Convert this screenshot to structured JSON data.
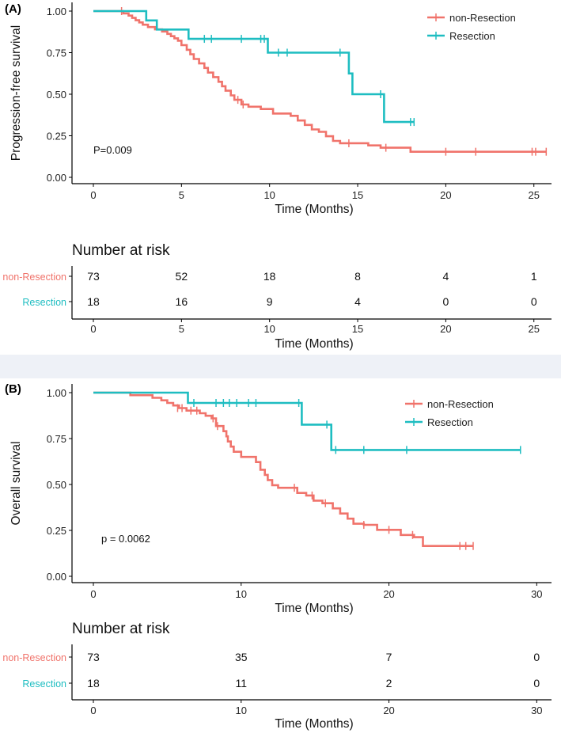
{
  "colors": {
    "non_resection": "#f0736b",
    "resection": "#1ebdc1",
    "axis": "#000000"
  },
  "chart_data": [
    {
      "type": "line",
      "id": "A",
      "panel_label": "(A)",
      "ylabel": "Progression-free survival",
      "xlabel": "Time (Months)",
      "xlim": [
        0,
        26
      ],
      "ylim": [
        0,
        1
      ],
      "xticks": [
        0,
        5,
        10,
        15,
        20,
        25
      ],
      "yticks": [
        0.0,
        0.25,
        0.5,
        0.75,
        1.0
      ],
      "ytick_labels": [
        "0.00",
        "0.25",
        "0.50",
        "0.75",
        "1.00"
      ],
      "pvalue": "P=0.009",
      "series": [
        {
          "name": "non-Resection",
          "steps": [
            [
              0,
              1
            ],
            [
              1.7,
              1
            ],
            [
              1.7,
              0.986
            ],
            [
              2.0,
              0.986
            ],
            [
              2.0,
              0.973
            ],
            [
              2.2,
              0.973
            ],
            [
              2.2,
              0.959
            ],
            [
              2.4,
              0.959
            ],
            [
              2.4,
              0.945
            ],
            [
              2.6,
              0.945
            ],
            [
              2.6,
              0.932
            ],
            [
              2.8,
              0.932
            ],
            [
              2.8,
              0.918
            ],
            [
              3.1,
              0.918
            ],
            [
              3.1,
              0.904
            ],
            [
              3.5,
              0.904
            ],
            [
              3.5,
              0.89
            ],
            [
              3.9,
              0.89
            ],
            [
              3.9,
              0.877
            ],
            [
              4.2,
              0.877
            ],
            [
              4.2,
              0.863
            ],
            [
              4.4,
              0.863
            ],
            [
              4.4,
              0.849
            ],
            [
              4.6,
              0.849
            ],
            [
              4.6,
              0.836
            ],
            [
              4.8,
              0.836
            ],
            [
              4.8,
              0.822
            ],
            [
              5.0,
              0.822
            ],
            [
              5.0,
              0.795
            ],
            [
              5.3,
              0.795
            ],
            [
              5.3,
              0.767
            ],
            [
              5.5,
              0.767
            ],
            [
              5.5,
              0.74
            ],
            [
              5.7,
              0.74
            ],
            [
              5.7,
              0.712
            ],
            [
              6.0,
              0.712
            ],
            [
              6.0,
              0.685
            ],
            [
              6.3,
              0.685
            ],
            [
              6.3,
              0.658
            ],
            [
              6.5,
              0.658
            ],
            [
              6.5,
              0.63
            ],
            [
              6.8,
              0.63
            ],
            [
              6.8,
              0.603
            ],
            [
              7.1,
              0.603
            ],
            [
              7.1,
              0.575
            ],
            [
              7.3,
              0.575
            ],
            [
              7.3,
              0.548
            ],
            [
              7.5,
              0.548
            ],
            [
              7.5,
              0.521
            ],
            [
              7.8,
              0.521
            ],
            [
              7.8,
              0.493
            ],
            [
              8.0,
              0.493
            ],
            [
              8.0,
              0.466
            ],
            [
              8.4,
              0.466
            ],
            [
              8.4,
              0.438
            ],
            [
              8.8,
              0.438
            ],
            [
              8.8,
              0.425
            ],
            [
              9.5,
              0.425
            ],
            [
              9.5,
              0.411
            ],
            [
              10.2,
              0.411
            ],
            [
              10.2,
              0.384
            ],
            [
              11.2,
              0.384
            ],
            [
              11.2,
              0.37
            ],
            [
              11.6,
              0.37
            ],
            [
              11.6,
              0.342
            ],
            [
              12.0,
              0.342
            ],
            [
              12.0,
              0.315
            ],
            [
              12.4,
              0.315
            ],
            [
              12.4,
              0.288
            ],
            [
              12.8,
              0.288
            ],
            [
              12.8,
              0.274
            ],
            [
              13.2,
              0.274
            ],
            [
              13.2,
              0.247
            ],
            [
              13.6,
              0.247
            ],
            [
              13.6,
              0.219
            ],
            [
              14.0,
              0.219
            ],
            [
              14.0,
              0.205
            ],
            [
              15.6,
              0.205
            ],
            [
              15.6,
              0.192
            ],
            [
              16.3,
              0.192
            ],
            [
              16.3,
              0.178
            ],
            [
              18.0,
              0.178
            ],
            [
              18.0,
              0.154
            ],
            [
              25.7,
              0.154
            ]
          ],
          "censors": [
            [
              1.6,
              1
            ],
            [
              8.2,
              0.466
            ],
            [
              8.5,
              0.438
            ],
            [
              14.5,
              0.205
            ],
            [
              16.6,
              0.178
            ],
            [
              20.0,
              0.154
            ],
            [
              21.7,
              0.154
            ],
            [
              24.9,
              0.154
            ],
            [
              25.1,
              0.154
            ],
            [
              25.7,
              0.154
            ]
          ]
        },
        {
          "name": "Resection",
          "steps": [
            [
              0,
              1
            ],
            [
              3.0,
              1
            ],
            [
              3.0,
              0.944
            ],
            [
              3.6,
              0.944
            ],
            [
              3.6,
              0.889
            ],
            [
              5.4,
              0.889
            ],
            [
              5.4,
              0.833
            ],
            [
              9.9,
              0.833
            ],
            [
              9.9,
              0.75
            ],
            [
              14.5,
              0.75
            ],
            [
              14.5,
              0.625
            ],
            [
              14.7,
              0.625
            ],
            [
              14.7,
              0.5
            ],
            [
              16.5,
              0.5
            ],
            [
              16.5,
              0.333
            ],
            [
              18.2,
              0.333
            ]
          ],
          "censors": [
            [
              6.3,
              0.833
            ],
            [
              6.7,
              0.833
            ],
            [
              8.4,
              0.833
            ],
            [
              9.5,
              0.833
            ],
            [
              9.7,
              0.833
            ],
            [
              10.5,
              0.75
            ],
            [
              11.0,
              0.75
            ],
            [
              14.0,
              0.75
            ],
            [
              16.3,
              0.5
            ],
            [
              18.0,
              0.333
            ],
            [
              18.2,
              0.333
            ]
          ]
        }
      ],
      "risk_table": {
        "title": "Number at risk",
        "xlabel": "Time (Months)",
        "xlim": [
          0,
          26
        ],
        "xticks": [
          0,
          5,
          10,
          15,
          20,
          25
        ],
        "rows": [
          {
            "name": "non-Resection",
            "values": [
              "73",
              "52",
              "18",
              "8",
              "4",
              "1"
            ]
          },
          {
            "name": "Resection",
            "values": [
              "18",
              "16",
              "9",
              "4",
              "0",
              "0"
            ]
          }
        ]
      }
    },
    {
      "type": "line",
      "id": "B",
      "panel_label": "(B)",
      "ylabel": "Overall survival",
      "xlabel": "Time (Months)",
      "xlim": [
        0,
        31
      ],
      "ylim": [
        0,
        1
      ],
      "xticks": [
        0,
        10,
        20,
        30
      ],
      "yticks": [
        0.0,
        0.25,
        0.5,
        0.75,
        1.0
      ],
      "ytick_labels": [
        "0.00",
        "0.25",
        "0.50",
        "0.75",
        "1.00"
      ],
      "pvalue": "p = 0.0062",
      "series": [
        {
          "name": "non-Resection",
          "steps": [
            [
              0,
              1
            ],
            [
              2.5,
              1
            ],
            [
              2.5,
              0.986
            ],
            [
              4.0,
              0.986
            ],
            [
              4.0,
              0.972
            ],
            [
              4.6,
              0.972
            ],
            [
              4.6,
              0.958
            ],
            [
              5.0,
              0.958
            ],
            [
              5.0,
              0.944
            ],
            [
              5.4,
              0.944
            ],
            [
              5.4,
              0.93
            ],
            [
              5.8,
              0.93
            ],
            [
              5.8,
              0.916
            ],
            [
              6.3,
              0.916
            ],
            [
              6.3,
              0.902
            ],
            [
              7.2,
              0.902
            ],
            [
              7.2,
              0.888
            ],
            [
              7.6,
              0.888
            ],
            [
              7.6,
              0.874
            ],
            [
              8.0,
              0.874
            ],
            [
              8.0,
              0.86
            ],
            [
              8.3,
              0.86
            ],
            [
              8.3,
              0.818
            ],
            [
              8.8,
              0.818
            ],
            [
              8.8,
              0.79
            ],
            [
              9.0,
              0.79
            ],
            [
              9.0,
              0.762
            ],
            [
              9.1,
              0.762
            ],
            [
              9.1,
              0.734
            ],
            [
              9.3,
              0.734
            ],
            [
              9.3,
              0.706
            ],
            [
              9.5,
              0.706
            ],
            [
              9.5,
              0.678
            ],
            [
              10.0,
              0.678
            ],
            [
              10.0,
              0.65
            ],
            [
              11.0,
              0.65
            ],
            [
              11.0,
              0.622
            ],
            [
              11.3,
              0.622
            ],
            [
              11.3,
              0.58
            ],
            [
              11.6,
              0.58
            ],
            [
              11.6,
              0.552
            ],
            [
              11.8,
              0.552
            ],
            [
              11.8,
              0.524
            ],
            [
              12.1,
              0.524
            ],
            [
              12.1,
              0.496
            ],
            [
              12.5,
              0.496
            ],
            [
              12.5,
              0.482
            ],
            [
              13.8,
              0.482
            ],
            [
              13.8,
              0.454
            ],
            [
              14.4,
              0.454
            ],
            [
              14.4,
              0.44
            ],
            [
              14.9,
              0.44
            ],
            [
              14.9,
              0.412
            ],
            [
              15.5,
              0.412
            ],
            [
              15.5,
              0.398
            ],
            [
              16.2,
              0.398
            ],
            [
              16.2,
              0.37
            ],
            [
              16.7,
              0.37
            ],
            [
              16.7,
              0.342
            ],
            [
              17.2,
              0.342
            ],
            [
              17.2,
              0.314
            ],
            [
              17.6,
              0.314
            ],
            [
              17.6,
              0.286
            ],
            [
              18.3,
              0.286
            ],
            [
              18.3,
              0.28
            ],
            [
              19.2,
              0.28
            ],
            [
              19.2,
              0.253
            ],
            [
              20.8,
              0.253
            ],
            [
              20.8,
              0.225
            ],
            [
              21.7,
              0.225
            ],
            [
              21.7,
              0.213
            ],
            [
              22.3,
              0.213
            ],
            [
              22.3,
              0.165
            ],
            [
              25.7,
              0.165
            ]
          ],
          "censors": [
            [
              5.7,
              0.916
            ],
            [
              6.0,
              0.916
            ],
            [
              6.6,
              0.902
            ],
            [
              7.0,
              0.902
            ],
            [
              8.1,
              0.86
            ],
            [
              8.4,
              0.818
            ],
            [
              13.6,
              0.482
            ],
            [
              14.8,
              0.44
            ],
            [
              15.7,
              0.398
            ],
            [
              18.3,
              0.28
            ],
            [
              20.0,
              0.253
            ],
            [
              21.6,
              0.225
            ],
            [
              24.8,
              0.165
            ],
            [
              25.2,
              0.165
            ],
            [
              25.7,
              0.165
            ]
          ]
        },
        {
          "name": "Resection",
          "steps": [
            [
              0,
              1
            ],
            [
              6.4,
              1
            ],
            [
              6.4,
              0.944
            ],
            [
              14.1,
              0.944
            ],
            [
              14.1,
              0.826
            ],
            [
              16.1,
              0.826
            ],
            [
              16.1,
              0.688
            ],
            [
              28.9,
              0.688
            ]
          ],
          "censors": [
            [
              6.8,
              0.944
            ],
            [
              8.3,
              0.944
            ],
            [
              8.8,
              0.944
            ],
            [
              9.2,
              0.944
            ],
            [
              9.7,
              0.944
            ],
            [
              10.5,
              0.944
            ],
            [
              11.0,
              0.944
            ],
            [
              13.9,
              0.944
            ],
            [
              15.8,
              0.826
            ],
            [
              16.4,
              0.688
            ],
            [
              18.3,
              0.688
            ],
            [
              21.2,
              0.688
            ],
            [
              28.9,
              0.688
            ]
          ]
        }
      ],
      "risk_table": {
        "title": "Number at risk",
        "xlabel": "Time (Months)",
        "xlim": [
          0,
          31
        ],
        "xticks": [
          0,
          10,
          20,
          30
        ],
        "rows": [
          {
            "name": "non-Resection",
            "values": [
              "73",
              "35",
              "7",
              "0"
            ]
          },
          {
            "name": "Resection",
            "values": [
              "18",
              "11",
              "2",
              "0"
            ]
          }
        ]
      }
    }
  ]
}
